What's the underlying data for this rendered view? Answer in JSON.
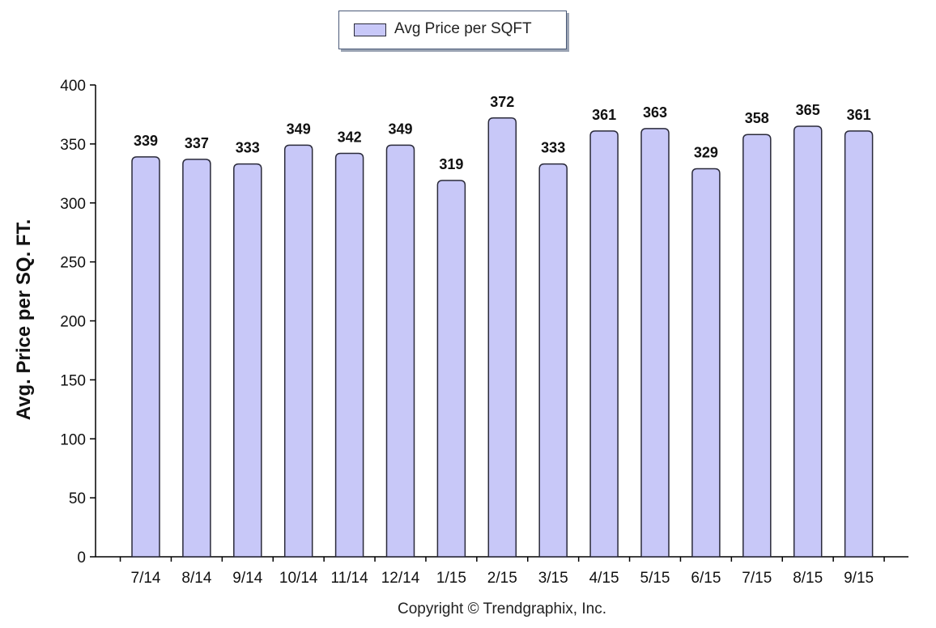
{
  "chart_data": {
    "type": "bar",
    "categories": [
      "7/14",
      "8/14",
      "9/14",
      "10/14",
      "11/14",
      "12/14",
      "1/15",
      "2/15",
      "3/15",
      "4/15",
      "5/15",
      "6/15",
      "7/15",
      "8/15",
      "9/15"
    ],
    "series": [
      {
        "name": "Avg Price per SQFT",
        "values": [
          339,
          337,
          333,
          349,
          342,
          349,
          319,
          372,
          333,
          361,
          363,
          329,
          358,
          365,
          361
        ]
      }
    ],
    "ylabel": "Avg. Price per SQ. FT.",
    "xlabel": "",
    "ylim": [
      0,
      400
    ],
    "yticks": [
      0,
      50,
      100,
      150,
      200,
      250,
      300,
      350,
      400
    ],
    "grid": false,
    "legend_position": "top-center",
    "data_labels": true,
    "bar_color": "#c8c8f8",
    "bar_stroke": "#2a2a3a"
  },
  "legend": {
    "label": "Avg Price per SQFT"
  },
  "footer": {
    "copyright": "Copyright © Trendgraphix, Inc."
  }
}
